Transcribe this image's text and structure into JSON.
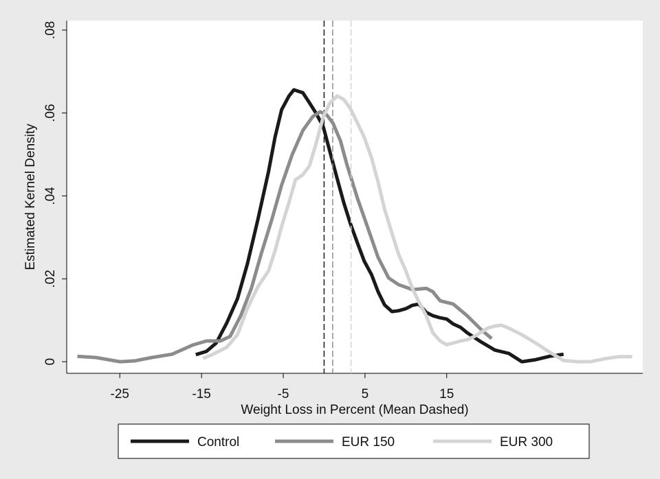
{
  "chart_data": {
    "type": "line",
    "y_label": "Estimated Kernel Density",
    "x_label": "Weight Loss in Percent (Mean Dashed)",
    "xlim": [
      -31.5,
      39
    ],
    "ylim": [
      -0.0028,
      0.0823
    ],
    "xticks": [
      -25,
      -15,
      -5,
      5,
      15
    ],
    "yticks": [
      0,
      {
        "value": 0.02,
        "label": ".02"
      },
      {
        "value": 0.04,
        "label": ".04"
      },
      {
        "value": 0.06,
        "label": ".06"
      },
      {
        "value": 0.08,
        "label": ".08"
      }
    ],
    "series": [
      {
        "name": "Control",
        "color": "#1a1a1a",
        "mean": 0,
        "x": [
          -15.7,
          -14.4,
          -13.2,
          -11.9,
          -10.6,
          -9.4,
          -8.1,
          -6.8,
          -6.0,
          -5.2,
          -4.3,
          -3.7,
          -2.6,
          -1.8,
          -1.0,
          -0.1,
          0.7,
          1.6,
          2.4,
          3.2,
          4.1,
          4.9,
          5.8,
          6.6,
          7.4,
          8.3,
          9.1,
          10.0,
          10.8,
          11.6,
          12.5,
          13.3,
          14.2,
          15.0,
          15.8,
          16.7,
          17.5,
          19.2,
          20.9,
          22.6,
          24.2,
          25.9,
          27.6,
          29.3
        ],
        "values": [
          0.0017,
          0.0025,
          0.0045,
          0.0094,
          0.0152,
          0.0235,
          0.0343,
          0.0459,
          0.0542,
          0.0608,
          0.0641,
          0.0656,
          0.0649,
          0.0625,
          0.06,
          0.0567,
          0.0508,
          0.0442,
          0.0384,
          0.0334,
          0.0285,
          0.0243,
          0.021,
          0.0169,
          0.0137,
          0.0121,
          0.0123,
          0.0128,
          0.0136,
          0.0139,
          0.0119,
          0.0111,
          0.0106,
          0.0103,
          0.0091,
          0.0083,
          0.007,
          0.0048,
          0.0028,
          0.002,
          0,
          0.0005,
          0.0013,
          0.0018
        ]
      },
      {
        "name": "EUR 150",
        "color": "#8c8c8c",
        "mean": 1.05,
        "x": [
          -30.2,
          -27.9,
          -25,
          -23.2,
          -21.1,
          -18.6,
          -16.1,
          -14.4,
          -12.7,
          -11.5,
          -10.2,
          -8.9,
          -7.7,
          -6.4,
          -5.2,
          -3.9,
          -2.6,
          -1.4,
          -0.5,
          0.3,
          1.1,
          2.0,
          2.8,
          4.1,
          5.3,
          6.6,
          7.9,
          9.1,
          10.8,
          12.5,
          13.3,
          14.2,
          15.8,
          17.5,
          19.2,
          20.5
        ],
        "values": [
          0.0013,
          0.001,
          0,
          0.0002,
          0.001,
          0.0018,
          0.004,
          0.005,
          0.005,
          0.0061,
          0.0111,
          0.0177,
          0.026,
          0.0343,
          0.0426,
          0.05,
          0.0558,
          0.0591,
          0.0603,
          0.0596,
          0.0575,
          0.0533,
          0.0475,
          0.0393,
          0.0326,
          0.0252,
          0.0202,
          0.0186,
          0.0174,
          0.0177,
          0.0169,
          0.0147,
          0.0139,
          0.0111,
          0.0078,
          0.0056
        ]
      },
      {
        "name": "EUR 300",
        "color": "#d4d4d4",
        "mean": 3.3,
        "x": [
          -14.8,
          -13.6,
          -11.9,
          -10.6,
          -9.4,
          -8.1,
          -6.8,
          -6.0,
          -5.2,
          -4.3,
          -3.5,
          -2.6,
          -1.8,
          -1.0,
          -0.1,
          0.7,
          1.6,
          2.4,
          3.2,
          4.1,
          4.9,
          5.8,
          6.6,
          7.4,
          8.3,
          9.1,
          10.0,
          10.8,
          11.6,
          12.5,
          13.3,
          14.2,
          15.0,
          15.8,
          16.7,
          17.5,
          18.4,
          19.2,
          20.0,
          20.9,
          21.7,
          22.6,
          24.2,
          25.9,
          27.6,
          29.3,
          31.0,
          32.6,
          34.3,
          36.0,
          37.7
        ],
        "values": [
          0.0008,
          0.0018,
          0.0035,
          0.0065,
          0.0128,
          0.0181,
          0.0219,
          0.0268,
          0.0326,
          0.0384,
          0.0439,
          0.0451,
          0.0472,
          0.0525,
          0.0591,
          0.0624,
          0.0641,
          0.0633,
          0.0611,
          0.0575,
          0.0542,
          0.0492,
          0.0434,
          0.0368,
          0.031,
          0.026,
          0.0219,
          0.0177,
          0.0144,
          0.0111,
          0.007,
          0.005,
          0.0041,
          0.0045,
          0.005,
          0.0053,
          0.0061,
          0.0071,
          0.0081,
          0.0086,
          0.0088,
          0.0081,
          0.0065,
          0.0045,
          0.0023,
          0.0003,
          0,
          0,
          0.0007,
          0.0012,
          0.0012
        ]
      }
    ]
  }
}
